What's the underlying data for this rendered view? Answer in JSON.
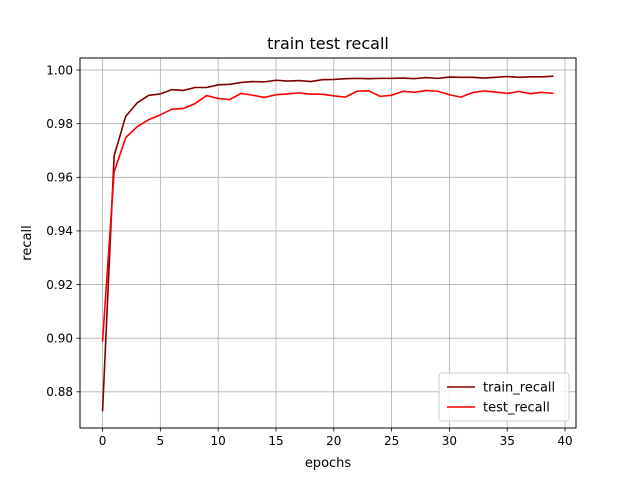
{
  "chart_data": {
    "type": "line",
    "title": "train test recall",
    "xlabel": "epochs",
    "ylabel": "recall",
    "xlim": [
      -1.95,
      40.95
    ],
    "ylim": [
      0.8665,
      1.0045
    ],
    "xticks": [
      0,
      5,
      10,
      15,
      20,
      25,
      30,
      35,
      40
    ],
    "xtick_labels": [
      "0",
      "5",
      "10",
      "15",
      "20",
      "25",
      "30",
      "35",
      "40"
    ],
    "yticks": [
      0.88,
      0.9,
      0.92,
      0.94,
      0.96,
      0.98,
      1.0
    ],
    "ytick_labels": [
      "0.88",
      "0.90",
      "0.92",
      "0.94",
      "0.96",
      "0.98",
      "1.00"
    ],
    "grid": true,
    "legend_position": "lower-right",
    "x": [
      0,
      1,
      2,
      3,
      4,
      5,
      6,
      7,
      8,
      9,
      10,
      11,
      12,
      13,
      14,
      15,
      16,
      17,
      18,
      19,
      20,
      21,
      22,
      23,
      24,
      25,
      26,
      27,
      28,
      29,
      30,
      31,
      32,
      33,
      34,
      35,
      36,
      37,
      38,
      39
    ],
    "series": [
      {
        "name": "train_recall",
        "color": "#800000",
        "values": [
          0.8727,
          0.968,
          0.9827,
          0.9878,
          0.9906,
          0.9911,
          0.9927,
          0.9924,
          0.9935,
          0.9935,
          0.9945,
          0.9947,
          0.9954,
          0.9957,
          0.9956,
          0.9962,
          0.9959,
          0.9961,
          0.9957,
          0.9964,
          0.9965,
          0.9968,
          0.9969,
          0.9968,
          0.9969,
          0.9969,
          0.997,
          0.9968,
          0.9972,
          0.9969,
          0.9974,
          0.9973,
          0.9973,
          0.997,
          0.9973,
          0.9976,
          0.9973,
          0.9975,
          0.9975,
          0.9977
        ]
      },
      {
        "name": "test_recall",
        "color": "#ff0000",
        "values": [
          0.8988,
          0.962,
          0.9748,
          0.9789,
          0.9815,
          0.9833,
          0.9854,
          0.9857,
          0.9875,
          0.9905,
          0.9894,
          0.989,
          0.9913,
          0.9906,
          0.9898,
          0.9908,
          0.9911,
          0.9915,
          0.991,
          0.991,
          0.9904,
          0.9899,
          0.9921,
          0.9923,
          0.9902,
          0.9906,
          0.9921,
          0.9917,
          0.9924,
          0.9921,
          0.9908,
          0.9899,
          0.9916,
          0.9922,
          0.9918,
          0.9913,
          0.992,
          0.9912,
          0.9917,
          0.9913
        ]
      }
    ]
  }
}
